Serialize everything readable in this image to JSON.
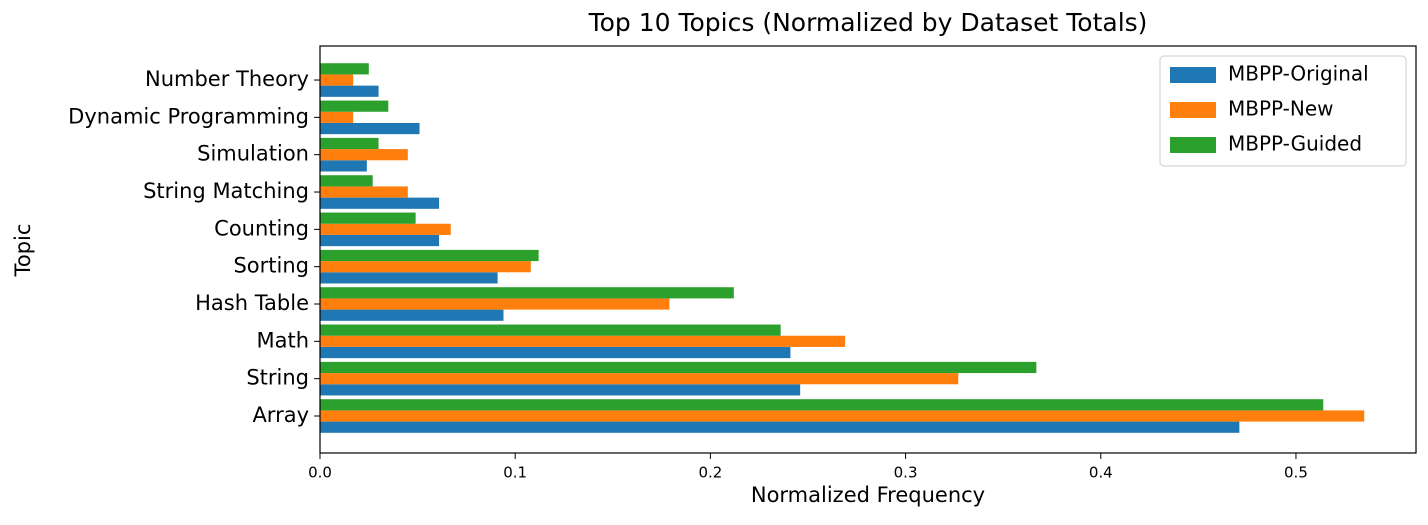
{
  "chart_data": {
    "type": "barh",
    "title": "Top 10 Topics (Normalized by Dataset Totals)",
    "x_label": "Normalized Frequency",
    "y_label": "Topic",
    "categories": [
      "Array",
      "String",
      "Math",
      "Hash Table",
      "Sorting",
      "Counting",
      "String Matching",
      "Simulation",
      "Dynamic Programming",
      "Number Theory"
    ],
    "series": [
      {
        "name": "MBPP-Original",
        "color": "#1f77b4",
        "values": [
          0.471,
          0.246,
          0.241,
          0.094,
          0.091,
          0.061,
          0.061,
          0.024,
          0.051,
          0.03
        ]
      },
      {
        "name": "MBPP-New",
        "color": "#ff7f0e",
        "values": [
          0.535,
          0.327,
          0.269,
          0.179,
          0.108,
          0.067,
          0.045,
          0.045,
          0.017,
          0.017
        ]
      },
      {
        "name": "MBPP-Guided",
        "color": "#2ca02c",
        "values": [
          0.514,
          0.367,
          0.236,
          0.212,
          0.112,
          0.049,
          0.027,
          0.03,
          0.035,
          0.025
        ]
      }
    ],
    "xlim": [
      0,
      0.5615
    ],
    "xticks": [
      {
        "value": 0,
        "label": "0.0"
      },
      0.1,
      0.2,
      0.3,
      0.4,
      0.5
    ],
    "legend": "upper right"
  }
}
